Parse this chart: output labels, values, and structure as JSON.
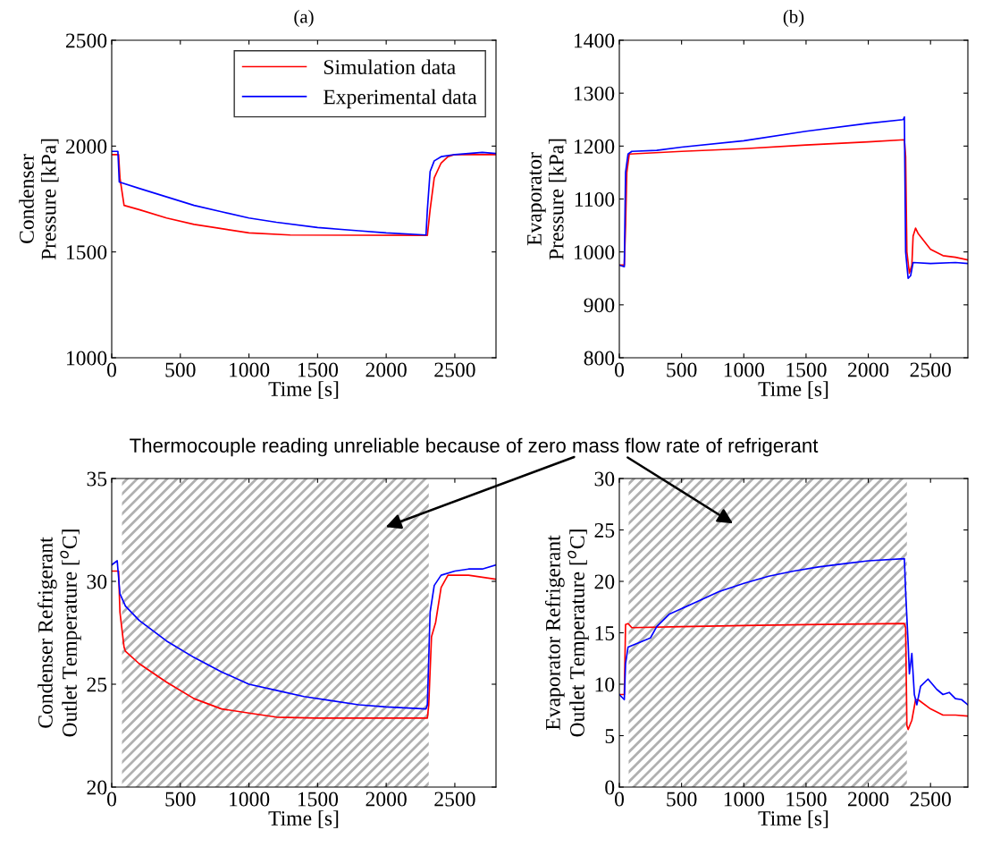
{
  "chart_data": [
    {
      "type": "line",
      "title": "(a)",
      "xlabel": "Time [s]",
      "ylabel": "Condenser\nPressure [kPa]",
      "xlim": [
        0,
        2800
      ],
      "xticks": [
        0,
        500,
        1000,
        1500,
        2000,
        2500
      ],
      "ylim": [
        1000,
        2500
      ],
      "yticks": [
        1000,
        1500,
        2000,
        2500
      ],
      "legend": "top right",
      "grid": false,
      "series": [
        {
          "name": "Simulation data",
          "color": "#ff0000",
          "x": [
            0,
            50,
            60,
            90,
            200,
            400,
            600,
            800,
            1000,
            1300,
            2300,
            2320,
            2350,
            2400,
            2450,
            2500,
            2800
          ],
          "values": [
            1960,
            1960,
            1850,
            1720,
            1700,
            1660,
            1630,
            1610,
            1590,
            1580,
            1578,
            1700,
            1850,
            1920,
            1950,
            1960,
            1960
          ]
        },
        {
          "name": "Experimental data",
          "color": "#0000ff",
          "x": [
            0,
            45,
            55,
            200,
            400,
            600,
            800,
            1000,
            1200,
            1500,
            1800,
            2000,
            2290,
            2300,
            2320,
            2350,
            2400,
            2500,
            2600,
            2700,
            2800
          ],
          "values": [
            1975,
            1975,
            1830,
            1800,
            1760,
            1720,
            1690,
            1660,
            1640,
            1615,
            1600,
            1590,
            1580,
            1700,
            1880,
            1930,
            1950,
            1960,
            1965,
            1970,
            1965
          ]
        }
      ]
    },
    {
      "type": "line",
      "title": "(b)",
      "xlabel": "Time [s]",
      "ylabel": "Evaporator\nPressure [kPa]",
      "xlim": [
        0,
        2800
      ],
      "xticks": [
        0,
        500,
        1000,
        1500,
        2000,
        2500
      ],
      "ylim": [
        800,
        1400
      ],
      "yticks": [
        800,
        900,
        1000,
        1100,
        1200,
        1300,
        1400
      ],
      "grid": false,
      "series": [
        {
          "color": "#ff0000",
          "x": [
            0,
            40,
            50,
            60,
            80,
            500,
            1000,
            1500,
            2000,
            2290,
            2300,
            2310,
            2330,
            2350,
            2360,
            2380,
            2400,
            2500,
            2600,
            2700,
            2800
          ],
          "values": [
            975,
            975,
            1050,
            1150,
            1185,
            1190,
            1195,
            1202,
            1208,
            1212,
            1180,
            1000,
            960,
            975,
            1030,
            1045,
            1035,
            1005,
            993,
            990,
            985
          ]
        },
        {
          "color": "#0000ff",
          "x": [
            0,
            40,
            50,
            70,
            100,
            300,
            500,
            1000,
            1500,
            2000,
            2280,
            2290,
            2300,
            2320,
            2340,
            2360,
            2500,
            2700,
            2800
          ],
          "values": [
            975,
            972,
            1150,
            1185,
            1190,
            1192,
            1198,
            1210,
            1228,
            1243,
            1250,
            1255,
            1000,
            950,
            955,
            980,
            978,
            980,
            978
          ]
        }
      ]
    },
    {
      "type": "line",
      "xlabel": "Time [s]",
      "ylabel": "Condenser Refrigerant\nOutlet Temperature [$^{o}$C]",
      "xlim": [
        0,
        2800
      ],
      "xticks": [
        0,
        500,
        1000,
        1500,
        2000,
        2500
      ],
      "ylim": [
        20,
        35
      ],
      "yticks": [
        20,
        25,
        30,
        35
      ],
      "grid": false,
      "annotations": [
        "Thermocouple reading unreliable because of zero mass flow rate of refrigerant"
      ],
      "bands": [
        {
          "axis": "x",
          "from": 75,
          "to": 2310,
          "color": "#b0b0b0"
        }
      ],
      "series": [
        {
          "color": "#ff0000",
          "x": [
            0,
            50,
            60,
            90,
            100,
            200,
            400,
            600,
            800,
            1000,
            1200,
            1500,
            2300,
            2310,
            2330,
            2360,
            2400,
            2450,
            2600,
            2800
          ],
          "values": [
            30.5,
            30.5,
            28.5,
            26.8,
            26.6,
            26.0,
            25.1,
            24.3,
            23.8,
            23.6,
            23.4,
            23.35,
            23.35,
            24.0,
            27.3,
            28.0,
            29.7,
            30.3,
            30.3,
            30.1
          ]
        },
        {
          "color": "#0000ff",
          "x": [
            0,
            40,
            60,
            100,
            200,
            400,
            600,
            800,
            1000,
            1200,
            1400,
            1600,
            1800,
            2000,
            2290,
            2300,
            2320,
            2350,
            2400,
            2500,
            2600,
            2700,
            2800
          ],
          "values": [
            30.8,
            31.0,
            29.4,
            28.8,
            28.1,
            27.1,
            26.3,
            25.6,
            25.0,
            24.7,
            24.4,
            24.2,
            24.0,
            23.9,
            23.8,
            24.0,
            28.5,
            29.8,
            30.3,
            30.5,
            30.6,
            30.6,
            30.8
          ]
        }
      ]
    },
    {
      "type": "line",
      "xlabel": "Time [s]",
      "ylabel": "Evaporator Refrigerant\nOutlet Temperature [$^{o}$C]",
      "xlim": [
        0,
        2800
      ],
      "xticks": [
        0,
        500,
        1000,
        1500,
        2000,
        2500
      ],
      "ylim": [
        0,
        30
      ],
      "yticks": [
        0,
        5,
        10,
        15,
        20,
        25,
        30
      ],
      "grid": false,
      "bands": [
        {
          "axis": "x",
          "from": 75,
          "to": 2310,
          "color": "#b0b0b0"
        }
      ],
      "series": [
        {
          "color": "#ff0000",
          "x": [
            0,
            40,
            50,
            70,
            100,
            500,
            1000,
            1500,
            2290,
            2300,
            2310,
            2320,
            2350,
            2380,
            2400,
            2500,
            2600,
            2700,
            2800
          ],
          "values": [
            9.0,
            9.0,
            15.8,
            15.9,
            15.5,
            15.6,
            15.7,
            15.8,
            15.9,
            15.5,
            6.0,
            5.6,
            6.5,
            8.5,
            8.5,
            7.6,
            7.0,
            7.0,
            6.9
          ]
        },
        {
          "color": "#0000ff",
          "x": [
            0,
            40,
            50,
            70,
            150,
            250,
            300,
            400,
            600,
            800,
            1000,
            1200,
            1400,
            1600,
            1800,
            2000,
            2290,
            2300,
            2320,
            2330,
            2350,
            2370,
            2390,
            2420,
            2480,
            2550,
            2600,
            2650,
            2700,
            2750,
            2800
          ],
          "values": [
            9.0,
            8.5,
            12,
            13.6,
            14.0,
            14.5,
            15.6,
            16.8,
            17.9,
            19.0,
            19.8,
            20.5,
            21.0,
            21.4,
            21.7,
            22.0,
            22.2,
            19,
            14,
            11,
            13,
            9,
            8,
            9.8,
            10.5,
            9.5,
            9.0,
            9.2,
            8.6,
            8.5,
            8.0
          ]
        }
      ]
    }
  ]
}
